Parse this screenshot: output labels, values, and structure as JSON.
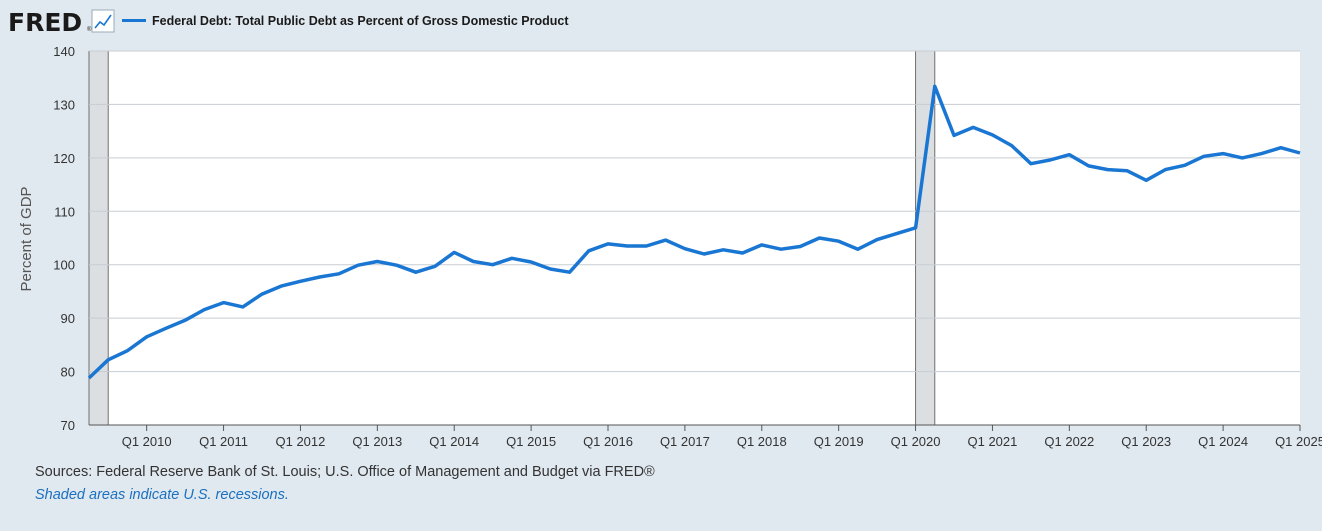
{
  "brand": {
    "logo": "FRED",
    "logo_icon": "line-chart-icon"
  },
  "legend": {
    "label": "Federal Debt: Total Public Debt as Percent of Gross Domestic Product",
    "color": "#1976d2"
  },
  "footer": {
    "sources": "Sources: Federal Reserve Bank of St. Louis; U.S. Office of Management and Budget via FRED®",
    "recession_note": "Shaded areas indicate U.S. recessions."
  },
  "chart_data": {
    "type": "line",
    "title": "",
    "xlabel": "",
    "ylabel": "Percent of GDP",
    "ylim": [
      70,
      140
    ],
    "yticks": [
      70,
      80,
      90,
      100,
      110,
      120,
      130,
      140
    ],
    "xticks": [
      "Q1 2010",
      "Q1 2011",
      "Q1 2012",
      "Q1 2013",
      "Q1 2014",
      "Q1 2015",
      "Q1 2016",
      "Q1 2017",
      "Q1 2018",
      "Q1 2019",
      "Q1 2020",
      "Q1 2021",
      "Q1 2022",
      "Q1 2023",
      "Q1 2024",
      "Q1 2025"
    ],
    "x_start": "Q2 2009",
    "x_end": "Q1 2025",
    "grid": true,
    "recessions": [
      {
        "start": "Q2 2009",
        "end": "Q2 2009"
      },
      {
        "start": "Q1 2020",
        "end": "Q2 2020"
      }
    ],
    "series": [
      {
        "color": "#1976d2",
        "x": [
          "Q2 2009",
          "Q3 2009",
          "Q4 2009",
          "Q1 2010",
          "Q2 2010",
          "Q3 2010",
          "Q4 2010",
          "Q1 2011",
          "Q2 2011",
          "Q3 2011",
          "Q4 2011",
          "Q1 2012",
          "Q2 2012",
          "Q3 2012",
          "Q4 2012",
          "Q1 2013",
          "Q2 2013",
          "Q3 2013",
          "Q4 2013",
          "Q1 2014",
          "Q2 2014",
          "Q3 2014",
          "Q4 2014",
          "Q1 2015",
          "Q2 2015",
          "Q3 2015",
          "Q4 2015",
          "Q1 2016",
          "Q2 2016",
          "Q3 2016",
          "Q4 2016",
          "Q1 2017",
          "Q2 2017",
          "Q3 2017",
          "Q4 2017",
          "Q1 2018",
          "Q2 2018",
          "Q3 2018",
          "Q4 2018",
          "Q1 2019",
          "Q2 2019",
          "Q3 2019",
          "Q4 2019",
          "Q1 2020",
          "Q2 2020",
          "Q3 2020",
          "Q4 2020",
          "Q1 2021",
          "Q2 2021",
          "Q3 2021",
          "Q4 2021",
          "Q1 2022",
          "Q2 2022",
          "Q3 2022",
          "Q4 2022",
          "Q1 2023",
          "Q2 2023",
          "Q3 2023",
          "Q4 2023",
          "Q1 2024",
          "Q2 2024",
          "Q3 2024",
          "Q4 2024",
          "Q1 2025"
        ],
        "values": [
          78.8,
          82.2,
          83.9,
          86.5,
          88.1,
          89.6,
          91.6,
          92.9,
          92.1,
          94.5,
          96.0,
          96.9,
          97.7,
          98.3,
          99.9,
          100.6,
          99.9,
          98.6,
          99.7,
          102.3,
          100.6,
          100.0,
          101.2,
          100.5,
          99.2,
          98.6,
          102.6,
          103.9,
          103.5,
          103.5,
          104.6,
          103.0,
          102.0,
          102.8,
          102.2,
          103.7,
          102.9,
          103.4,
          105.0,
          104.4,
          102.9,
          104.7,
          105.8,
          106.9,
          133.4,
          124.2,
          125.7,
          124.3,
          122.3,
          118.9,
          119.6,
          120.6,
          118.5,
          117.8,
          117.6,
          115.8,
          117.8,
          118.6,
          120.3,
          120.8,
          120.0,
          120.8,
          121.9,
          120.9
        ]
      }
    ]
  }
}
